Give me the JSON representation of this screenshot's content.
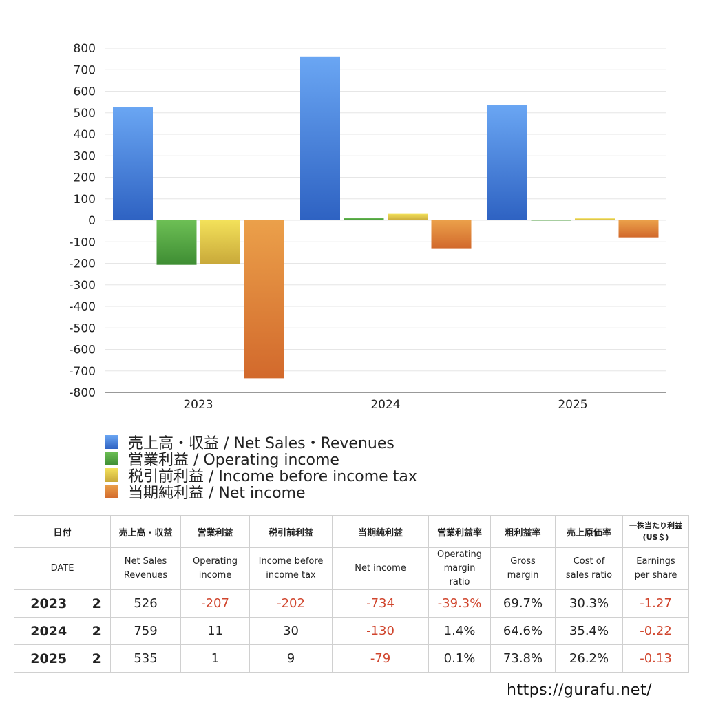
{
  "chart_data": {
    "type": "bar",
    "categories": [
      "2023",
      "2024",
      "2025"
    ],
    "series": [
      {
        "name": "売上高・収益 / Net Sales・Revenues",
        "values": [
          526,
          759,
          535
        ],
        "color_top": "#6aa6f3",
        "color_bottom": "#2e62c2"
      },
      {
        "name": "営業利益 / Operating income",
        "values": [
          -207,
          11,
          1
        ],
        "color_top": "#6dbf55",
        "color_bottom": "#3e8d33"
      },
      {
        "name": "税引前利益 / Income before income tax",
        "values": [
          -202,
          30,
          9
        ],
        "color_top": "#f3e15a",
        "color_bottom": "#c9a93a"
      },
      {
        "name": "当期純利益 / Net income",
        "values": [
          -734,
          -130,
          -79
        ],
        "color_top": "#eba04a",
        "color_bottom": "#d2692c"
      }
    ],
    "ylim": [
      -800,
      800
    ],
    "yticks": [
      800,
      700,
      600,
      500,
      400,
      300,
      200,
      100,
      0,
      -100,
      -200,
      -300,
      -400,
      -500,
      -600,
      -700,
      -800
    ],
    "grid": true,
    "legend_position": "bottom-left"
  },
  "table": {
    "header_jp": [
      "日付",
      "売上高・収益",
      "営業利益",
      "税引前利益",
      "当期純利益",
      "営業利益率",
      "粗利益率",
      "売上原価率"
    ],
    "header_jp_eps": [
      "一株当たり利益",
      "(US＄)"
    ],
    "header_en_date": "DATE",
    "header_en": [
      [
        "Net Sales",
        "Revenues"
      ],
      [
        "Operating",
        "income"
      ],
      [
        "Income before",
        "income tax"
      ],
      [
        "Net income"
      ],
      [
        "Operating",
        "margin",
        "ratio"
      ],
      [
        "Gross",
        "margin"
      ],
      [
        "Cost of",
        "sales ratio"
      ],
      [
        "Earnings",
        "per share"
      ]
    ],
    "rows": [
      {
        "year": "2023",
        "month": "2",
        "values": [
          "526",
          "-207",
          "-202",
          "-734",
          "-39.3%",
          "69.7%",
          "30.3%",
          "-1.27"
        ]
      },
      {
        "year": "2024",
        "month": "2",
        "values": [
          "759",
          "11",
          "30",
          "-130",
          "1.4%",
          "64.6%",
          "35.4%",
          "-0.22"
        ]
      },
      {
        "year": "2025",
        "month": "2",
        "values": [
          "535",
          "1",
          "9",
          "-79",
          "0.1%",
          "73.8%",
          "26.2%",
          "-0.13"
        ]
      }
    ]
  },
  "footer": {
    "url": "https://gurafu.net/"
  },
  "colors": {
    "negative": "#d0452d",
    "grid": "#e6e6e6"
  }
}
